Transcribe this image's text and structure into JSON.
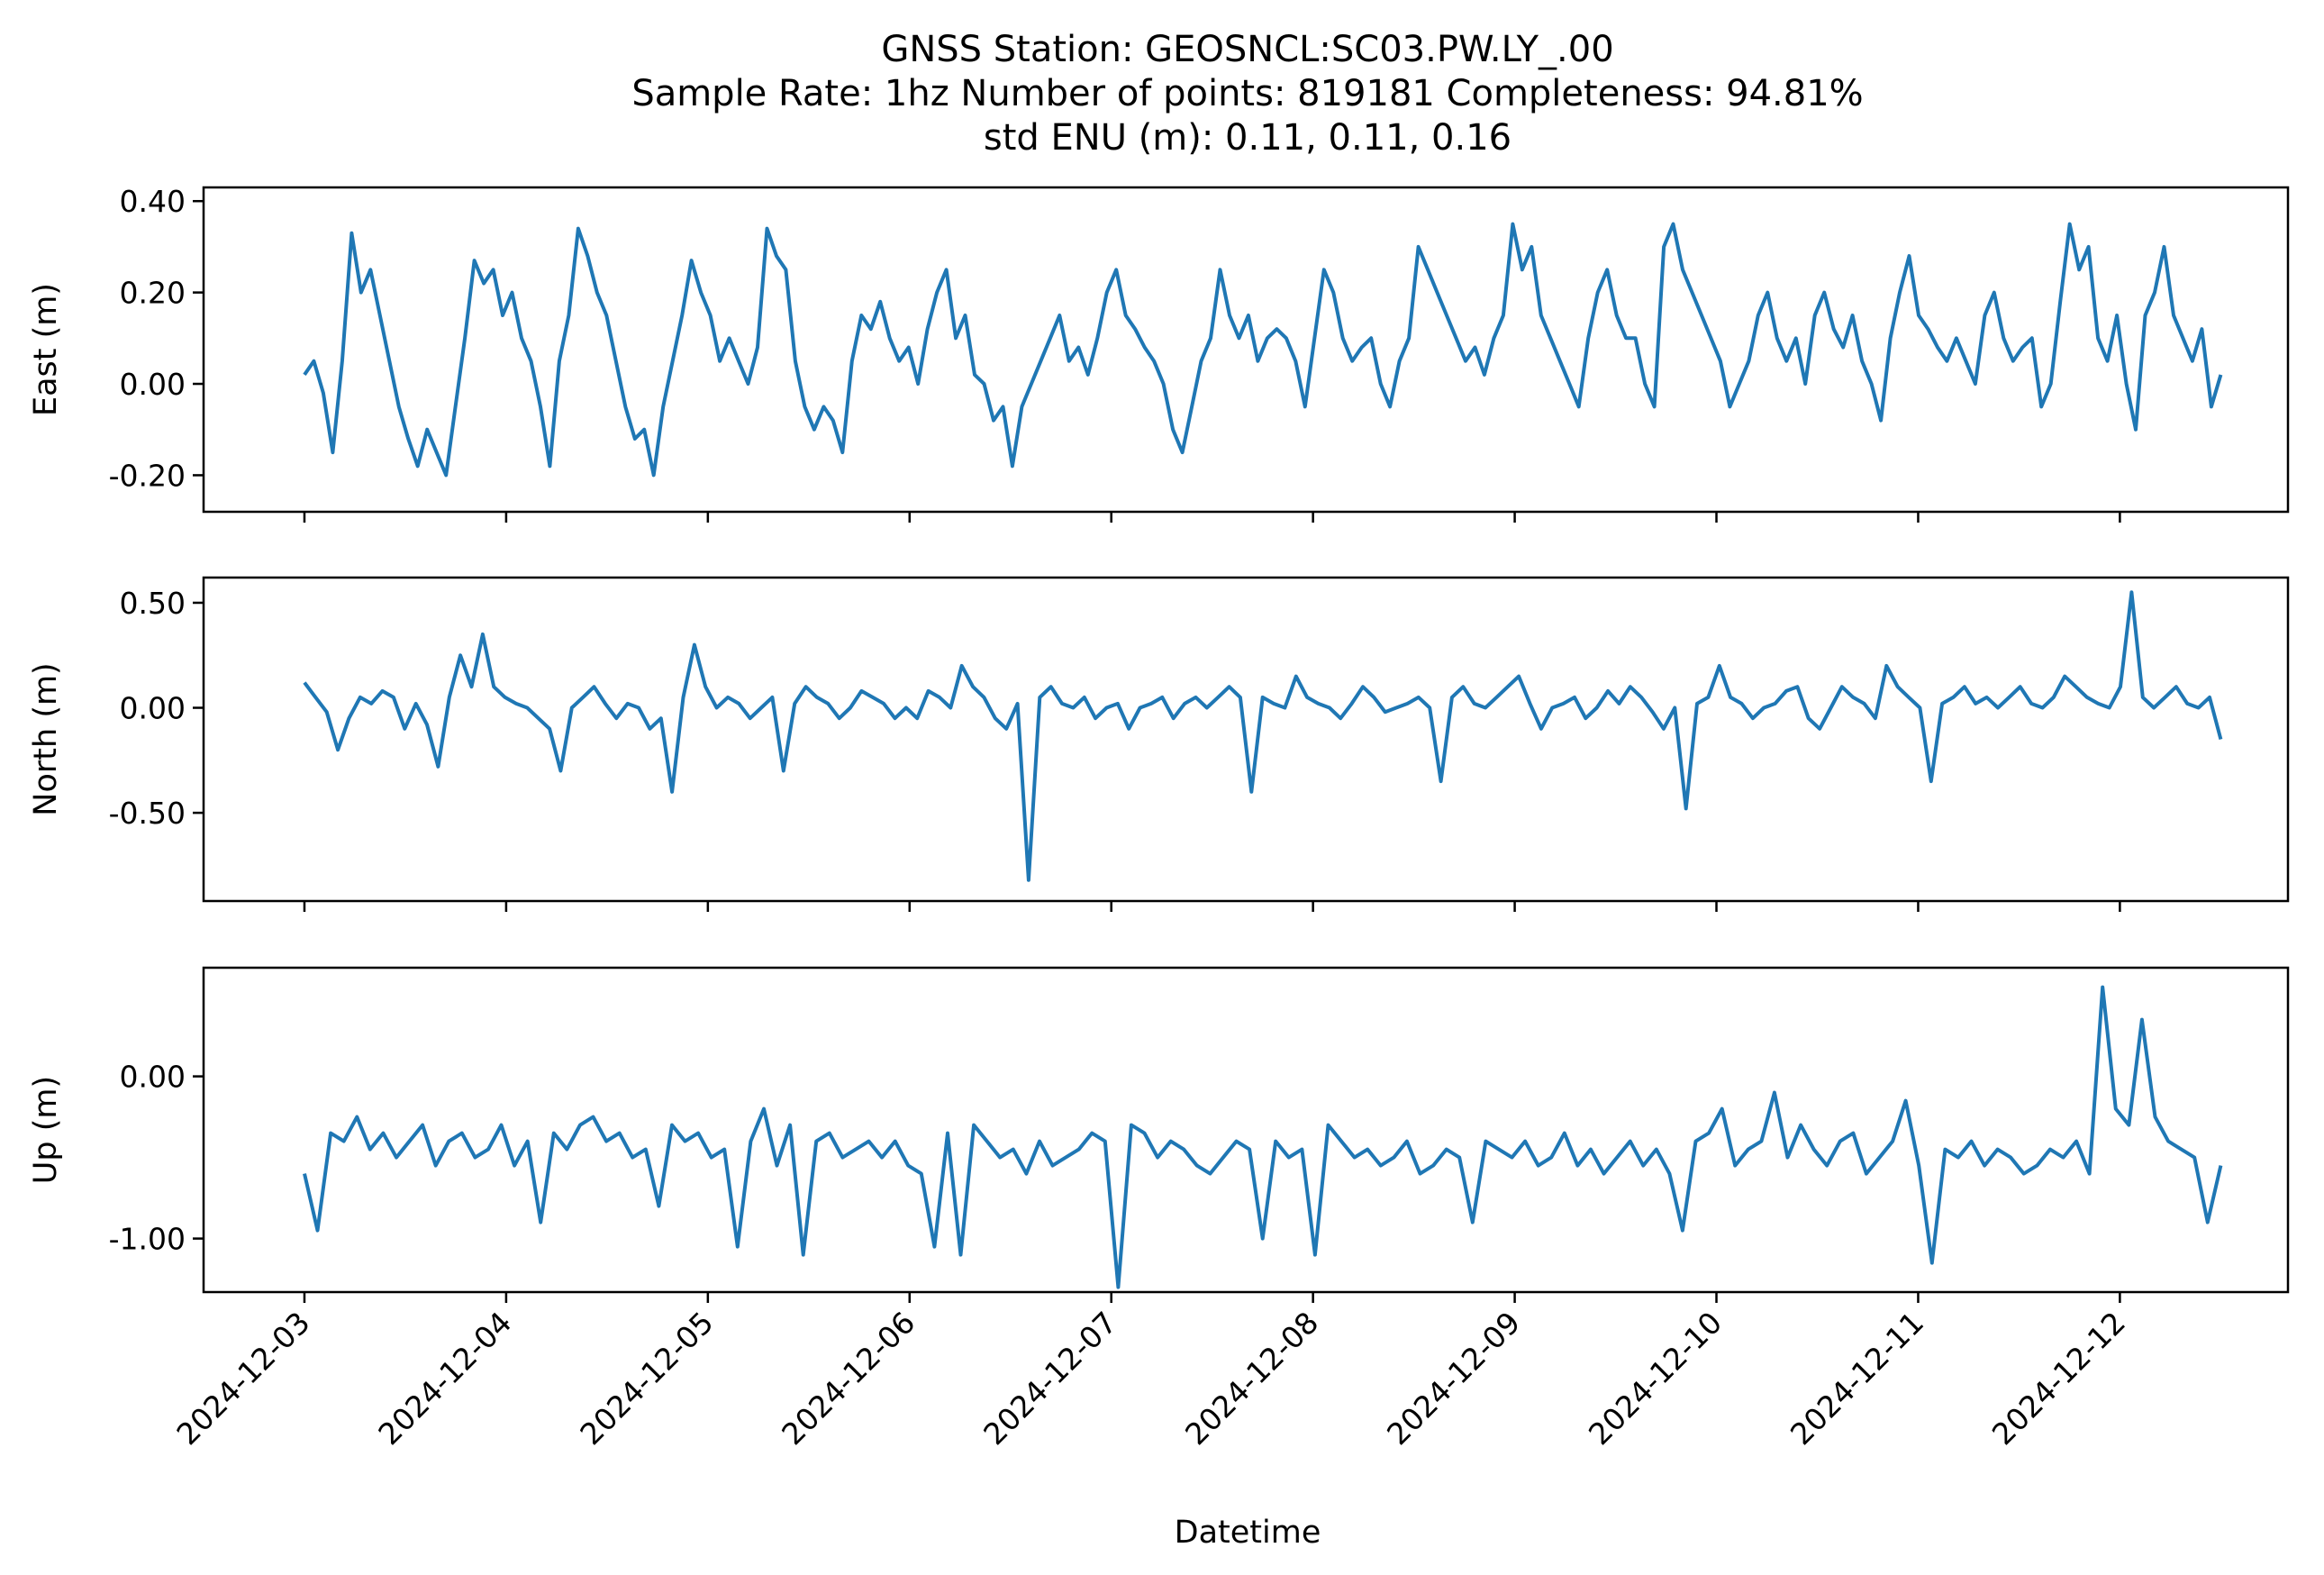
{
  "chart_data": {
    "type": "line",
    "title": [
      "GNSS Station: GEOSNCL:SC03.PW.LY_.00",
      "Sample Rate: 1hz   Number of points: 819181    Completeness:  94.81%",
      "std ENU (m):  0.11, 0.11, 0.16"
    ],
    "xlabel": "Datetime",
    "x_ticks": [
      "2024-12-03",
      "2024-12-04",
      "2024-12-05",
      "2024-12-06",
      "2024-12-07",
      "2024-12-08",
      "2024-12-09",
      "2024-12-10",
      "2024-12-11",
      "2024-12-12"
    ],
    "xlim": [
      "2024-12-02T12:00",
      "2024-12-12T20:00"
    ],
    "x_range_data": [
      "2024-12-03T00:00",
      "2024-12-12T12:00"
    ],
    "line_color": "#1f77b4",
    "grid": false,
    "subplots": [
      {
        "ylabel": "East (m)",
        "ylim": [
          -0.28,
          0.43
        ],
        "y_ticks": [
          -0.2,
          0.0,
          0.2,
          0.4
        ],
        "y_tick_labels": [
          "-0.20",
          "0.00",
          "0.20",
          "0.40"
        ],
        "y_values": [
          0.02,
          0.05,
          -0.02,
          -0.15,
          0.05,
          0.33,
          0.2,
          0.25,
          0.15,
          0.05,
          -0.05,
          -0.12,
          -0.18,
          -0.1,
          -0.15,
          -0.2,
          -0.05,
          0.1,
          0.27,
          0.22,
          0.25,
          0.15,
          0.2,
          0.1,
          0.05,
          -0.05,
          -0.18,
          0.05,
          0.15,
          0.34,
          0.28,
          0.2,
          0.15,
          0.05,
          -0.05,
          -0.12,
          -0.1,
          -0.2,
          -0.05,
          0.05,
          0.15,
          0.27,
          0.2,
          0.15,
          0.05,
          0.1,
          0.05,
          0.0,
          0.08,
          0.34,
          0.28,
          0.25,
          0.05,
          -0.05,
          -0.1,
          -0.05,
          -0.08,
          -0.15,
          0.05,
          0.15,
          0.12,
          0.18,
          0.1,
          0.05,
          0.08,
          0.0,
          0.12,
          0.2,
          0.25,
          0.1,
          0.15,
          0.02,
          0.0,
          -0.08,
          -0.05,
          -0.18,
          -0.05,
          0.0,
          0.05,
          0.1,
          0.15,
          0.05,
          0.08,
          0.02,
          0.1,
          0.2,
          0.25,
          0.15,
          0.12,
          0.08,
          0.05,
          0.0,
          -0.1,
          -0.15,
          -0.05,
          0.05,
          0.1,
          0.25,
          0.15,
          0.1,
          0.15,
          0.05,
          0.1,
          0.12,
          0.1,
          0.05,
          -0.05,
          0.1,
          0.25,
          0.2,
          0.1,
          0.05,
          0.08,
          0.1,
          0.0,
          -0.05,
          0.05,
          0.1,
          0.3,
          0.25,
          0.2,
          0.15,
          0.1,
          0.05,
          0.08,
          0.02,
          0.1,
          0.15,
          0.35,
          0.25,
          0.3,
          0.15,
          0.1,
          0.05,
          0.0,
          -0.05,
          0.1,
          0.2,
          0.25,
          0.15,
          0.1,
          0.1,
          0.0,
          -0.05,
          0.3,
          0.35,
          0.25,
          0.2,
          0.15,
          0.1,
          0.05,
          -0.05,
          0.0,
          0.05,
          0.15,
          0.2,
          0.1,
          0.05,
          0.1,
          0.0,
          0.15,
          0.2,
          0.12,
          0.08,
          0.15,
          0.05,
          0.0,
          -0.08,
          0.1,
          0.2,
          0.28,
          0.15,
          0.12,
          0.08,
          0.05,
          0.1,
          0.05,
          0.0,
          0.15,
          0.2,
          0.1,
          0.05,
          0.08,
          0.1,
          -0.05,
          0.0,
          0.18,
          0.35,
          0.25,
          0.3,
          0.1,
          0.05,
          0.15,
          0.0,
          -0.1,
          0.15,
          0.2,
          0.3,
          0.15,
          0.1,
          0.05,
          0.12,
          -0.05,
          0.02
        ]
      },
      {
        "ylabel": "North (m)",
        "ylim": [
          -0.92,
          0.62
        ],
        "y_ticks": [
          -0.5,
          0.0,
          0.5
        ],
        "y_tick_labels": [
          "-0.50",
          "0.00",
          "0.50"
        ],
        "y_values": [
          0.12,
          0.05,
          -0.02,
          -0.2,
          -0.05,
          0.05,
          0.02,
          0.08,
          0.05,
          -0.1,
          0.02,
          -0.08,
          -0.28,
          0.05,
          0.25,
          0.1,
          0.35,
          0.1,
          0.05,
          0.02,
          0.0,
          -0.05,
          -0.1,
          -0.3,
          0.0,
          0.05,
          0.1,
          0.02,
          -0.05,
          0.02,
          0.0,
          -0.1,
          -0.05,
          -0.4,
          0.05,
          0.3,
          0.1,
          0.0,
          0.05,
          0.02,
          -0.05,
          0.0,
          0.05,
          -0.3,
          0.02,
          0.1,
          0.05,
          0.02,
          -0.05,
          0.0,
          0.08,
          0.05,
          0.02,
          -0.05,
          0.0,
          -0.05,
          0.08,
          0.05,
          0.0,
          0.2,
          0.1,
          0.05,
          -0.05,
          -0.1,
          0.02,
          -0.82,
          0.05,
          0.1,
          0.02,
          0.0,
          0.05,
          -0.05,
          0.0,
          0.02,
          -0.1,
          0.0,
          0.02,
          0.05,
          -0.05,
          0.02,
          0.05,
          0.0,
          0.05,
          0.1,
          0.05,
          -0.4,
          0.05,
          0.02,
          0.0,
          0.15,
          0.05,
          0.02,
          0.0,
          -0.05,
          0.02,
          0.1,
          0.05,
          -0.02,
          0.0,
          0.02,
          0.05,
          0.0,
          -0.35,
          0.05,
          0.1,
          0.02,
          0.0,
          0.05,
          0.1,
          0.15,
          0.02,
          -0.1,
          0.0,
          0.02,
          0.05,
          -0.05,
          0.0,
          0.08,
          0.02,
          0.1,
          0.05,
          -0.02,
          -0.1,
          0.0,
          -0.48,
          0.02,
          0.05,
          0.2,
          0.05,
          0.02,
          -0.05,
          0.0,
          0.02,
          0.08,
          0.1,
          -0.05,
          -0.1,
          0.0,
          0.1,
          0.05,
          0.02,
          -0.05,
          0.2,
          0.1,
          0.05,
          0.0,
          -0.35,
          0.02,
          0.05,
          0.1,
          0.02,
          0.05,
          0.0,
          0.05,
          0.1,
          0.02,
          0.0,
          0.05,
          0.15,
          0.1,
          0.05,
          0.02,
          0.0,
          0.1,
          0.55,
          0.05,
          0.0,
          0.05,
          0.1,
          0.02,
          0.0,
          0.05,
          -0.15
        ]
      },
      {
        "ylabel": "Up (m)",
        "ylim": [
          -1.33,
          0.67
        ],
        "y_ticks": [
          -1.0,
          0.0
        ],
        "y_tick_labels": [
          "-1.00",
          "0.00"
        ],
        "y_values": [
          -0.6,
          -0.95,
          -0.35,
          -0.4,
          -0.25,
          -0.45,
          -0.35,
          -0.5,
          -0.4,
          -0.3,
          -0.55,
          -0.4,
          -0.35,
          -0.5,
          -0.45,
          -0.3,
          -0.55,
          -0.4,
          -0.9,
          -0.35,
          -0.45,
          -0.3,
          -0.25,
          -0.4,
          -0.35,
          -0.5,
          -0.45,
          -0.8,
          -0.3,
          -0.4,
          -0.35,
          -0.5,
          -0.45,
          -1.05,
          -0.4,
          -0.2,
          -0.55,
          -0.3,
          -1.1,
          -0.4,
          -0.35,
          -0.5,
          -0.45,
          -0.4,
          -0.5,
          -0.4,
          -0.55,
          -0.6,
          -1.05,
          -0.35,
          -1.1,
          -0.3,
          -0.4,
          -0.5,
          -0.45,
          -0.6,
          -0.4,
          -0.55,
          -0.5,
          -0.45,
          -0.35,
          -0.4,
          -1.3,
          -0.3,
          -0.35,
          -0.5,
          -0.4,
          -0.45,
          -0.55,
          -0.6,
          -0.5,
          -0.4,
          -0.45,
          -1.0,
          -0.4,
          -0.5,
          -0.45,
          -1.1,
          -0.3,
          -0.4,
          -0.5,
          -0.45,
          -0.55,
          -0.5,
          -0.4,
          -0.6,
          -0.55,
          -0.45,
          -0.5,
          -0.9,
          -0.4,
          -0.45,
          -0.5,
          -0.4,
          -0.55,
          -0.5,
          -0.35,
          -0.55,
          -0.45,
          -0.6,
          -0.5,
          -0.4,
          -0.55,
          -0.45,
          -0.6,
          -0.95,
          -0.4,
          -0.35,
          -0.2,
          -0.55,
          -0.45,
          -0.4,
          -0.1,
          -0.5,
          -0.3,
          -0.45,
          -0.55,
          -0.4,
          -0.35,
          -0.6,
          -0.5,
          -0.4,
          -0.15,
          -0.55,
          -1.15,
          -0.45,
          -0.5,
          -0.4,
          -0.55,
          -0.45,
          -0.5,
          -0.6,
          -0.55,
          -0.45,
          -0.5,
          -0.4,
          -0.6,
          0.55,
          -0.2,
          -0.3,
          0.35,
          -0.25,
          -0.4,
          -0.45,
          -0.5,
          -0.9,
          -0.55
        ]
      }
    ]
  }
}
